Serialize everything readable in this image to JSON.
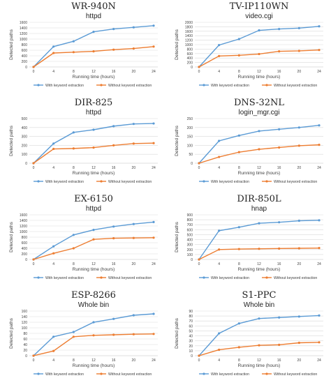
{
  "chart_data": [
    {
      "type": "line",
      "title": "WR-940N",
      "subtitle": "httpd",
      "xlabel": "Running time (hours)",
      "ylabel": "Detected paths",
      "x": [
        0,
        4,
        8,
        12,
        16,
        20,
        24
      ],
      "ylim": [
        0,
        1600
      ],
      "yticks": [
        0,
        200,
        400,
        600,
        800,
        1000,
        1200,
        1400,
        1600
      ],
      "series": [
        {
          "name": "With keyword extraction",
          "values": [
            0,
            730,
            920,
            1260,
            1360,
            1420,
            1480
          ]
        },
        {
          "name": "Without keyword extraction",
          "values": [
            0,
            500,
            530,
            560,
            620,
            660,
            730
          ]
        }
      ],
      "legend": "bottom",
      "grid": "horizontal"
    },
    {
      "type": "line",
      "title": "TV-IP110WN",
      "subtitle": "video.cgi",
      "xlabel": "Running time (hours)",
      "ylabel": "Detected paths",
      "x": [
        0,
        4,
        8,
        12,
        16,
        20,
        24
      ],
      "ylim": [
        0,
        2000
      ],
      "yticks": [
        0,
        200,
        400,
        600,
        800,
        1000,
        1200,
        1400,
        1600,
        1800,
        2000
      ],
      "series": [
        {
          "name": "With keyword extraction",
          "values": [
            0,
            980,
            1250,
            1640,
            1700,
            1740,
            1820
          ]
        },
        {
          "name": "Without keyword extraction",
          "values": [
            0,
            490,
            520,
            580,
            700,
            720,
            760
          ]
        }
      ],
      "legend": "bottom",
      "grid": "horizontal"
    },
    {
      "type": "line",
      "title": "DIR-825",
      "subtitle": "httpd",
      "xlabel": "Running time (hours)",
      "ylabel": "Detected paths",
      "x": [
        0,
        4,
        8,
        12,
        16,
        20,
        24
      ],
      "ylim": [
        0,
        500
      ],
      "yticks": [
        0,
        100,
        200,
        300,
        400,
        500
      ],
      "series": [
        {
          "name": "With keyword extraction",
          "values": [
            0,
            220,
            345,
            375,
            415,
            440,
            445
          ]
        },
        {
          "name": "Without keyword extraction",
          "values": [
            0,
            160,
            165,
            175,
            200,
            220,
            225
          ]
        }
      ],
      "legend": "bottom",
      "grid": "horizontal"
    },
    {
      "type": "line",
      "title": "DNS-32NL",
      "subtitle": "login_mgr.cgi",
      "xlabel": "Running time (hours)",
      "ylabel": "Detected paths",
      "x": [
        0,
        4,
        8,
        12,
        16,
        20,
        24
      ],
      "ylim": [
        0,
        250
      ],
      "yticks": [
        0,
        50,
        100,
        150,
        200,
        250
      ],
      "series": [
        {
          "name": "With keyword extraction",
          "values": [
            0,
            125,
            155,
            180,
            190,
            200,
            212
          ]
        },
        {
          "name": "Without keyword extraction",
          "values": [
            0,
            35,
            62,
            78,
            88,
            98,
            103
          ]
        }
      ],
      "legend": "bottom",
      "grid": "horizontal"
    },
    {
      "type": "line",
      "title": "EX-6150",
      "subtitle": "httpd",
      "xlabel": "Running time (hours)",
      "ylabel": "Detected paths",
      "x": [
        0,
        4,
        8,
        12,
        16,
        20,
        24
      ],
      "ylim": [
        0,
        1600
      ],
      "yticks": [
        0,
        200,
        400,
        600,
        800,
        1000,
        1200,
        1400,
        1600
      ],
      "series": [
        {
          "name": "With keyword extraction",
          "values": [
            0,
            470,
            880,
            1060,
            1180,
            1270,
            1340
          ]
        },
        {
          "name": "Without keyword extraction",
          "values": [
            0,
            220,
            400,
            720,
            760,
            770,
            780
          ]
        }
      ],
      "legend": "bottom",
      "grid": "horizontal"
    },
    {
      "type": "line",
      "title": "DIR-850L",
      "subtitle": "hnap",
      "xlabel": "Running time (hours)",
      "ylabel": "Detected paths",
      "x": [
        0,
        4,
        8,
        12,
        16,
        20,
        24
      ],
      "ylim": [
        0,
        900
      ],
      "yticks": [
        0,
        100,
        200,
        300,
        400,
        500,
        600,
        700,
        800,
        900
      ],
      "series": [
        {
          "name": "With keyword extraction",
          "values": [
            0,
            580,
            650,
            730,
            750,
            780,
            790
          ]
        },
        {
          "name": "Without keyword extraction",
          "values": [
            0,
            200,
            210,
            215,
            220,
            225,
            230
          ]
        }
      ],
      "legend": "bottom",
      "grid": "horizontal"
    },
    {
      "type": "line",
      "title": "ESP-8266",
      "subtitle": "Whole bin",
      "xlabel": "Running time (hours)",
      "ylabel": "Detected paths",
      "x": [
        0,
        4,
        8,
        12,
        16,
        20,
        24
      ],
      "ylim": [
        0,
        160
      ],
      "yticks": [
        0,
        20,
        40,
        60,
        80,
        100,
        120,
        140,
        160
      ],
      "series": [
        {
          "name": "With keyword extraction",
          "values": [
            0,
            68,
            85,
            120,
            132,
            145,
            150
          ]
        },
        {
          "name": "Without keyword extraction",
          "values": [
            0,
            17,
            68,
            73,
            75,
            77,
            78
          ]
        }
      ],
      "legend": "bottom",
      "grid": "horizontal"
    },
    {
      "type": "line",
      "title": "S1-PPC",
      "subtitle": "Whole bin",
      "xlabel": "Running time (hours)",
      "ylabel": "Detected paths",
      "x": [
        0,
        4,
        8,
        12,
        16,
        20,
        24
      ],
      "ylim": [
        0,
        90
      ],
      "yticks": [
        0,
        10,
        20,
        30,
        40,
        50,
        60,
        70,
        80,
        90
      ],
      "series": [
        {
          "name": "With keyword extraction",
          "values": [
            0,
            45,
            65,
            75,
            77,
            79,
            81
          ]
        },
        {
          "name": "Without keyword extraction",
          "values": [
            0,
            12,
            17,
            21,
            22,
            26,
            27
          ]
        }
      ],
      "legend": "bottom",
      "grid": "horizontal"
    }
  ],
  "colors": {
    "with_keyword": "#5b9bd5",
    "without_keyword": "#ed7d31",
    "grid": "#d9d9d9",
    "axis": "#bfbfbf",
    "text": "#404040",
    "title": "#222222"
  }
}
